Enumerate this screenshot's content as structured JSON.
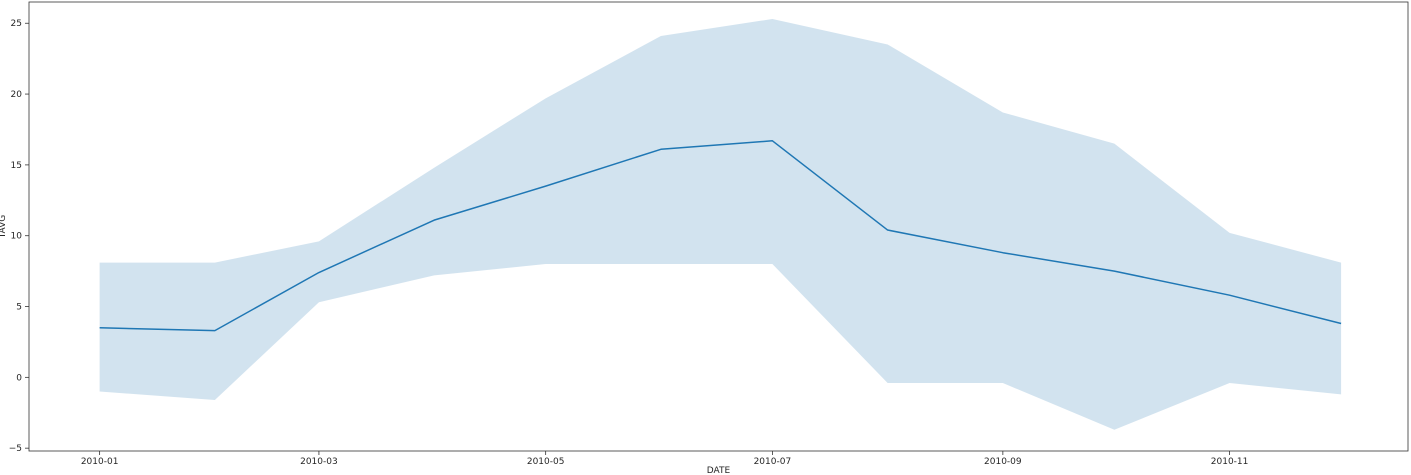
{
  "chart_data": {
    "type": "line",
    "title": "",
    "xlabel": "DATE",
    "ylabel": "TAVG",
    "x": [
      "2010-01-01",
      "2010-02-01",
      "2010-03-01",
      "2010-04-01",
      "2010-05-01",
      "2010-06-01",
      "2010-07-01",
      "2010-08-01",
      "2010-09-01",
      "2010-10-01",
      "2010-11-01",
      "2010-12-01"
    ],
    "x_tick_labels": [
      "2010-01",
      "2010-03",
      "2010-05",
      "2010-07",
      "2010-09",
      "2010-11"
    ],
    "x_tick_dates": [
      "2010-01-01",
      "2010-03-01",
      "2010-05-01",
      "2010-07-01",
      "2010-09-01",
      "2010-11-01"
    ],
    "y_ticks": [
      -5,
      0,
      5,
      10,
      15,
      20,
      25
    ],
    "ylim": [
      -5.2,
      26.5
    ],
    "xlim": [
      "2009-12-13",
      "2010-12-19"
    ],
    "grid": false,
    "series": [
      {
        "color": "#1f77b4",
        "mean": [
          3.5,
          3.3,
          7.4,
          11.1,
          13.5,
          16.1,
          16.7,
          10.4,
          8.8,
          7.5,
          5.8,
          3.8
        ],
        "upper": [
          8.1,
          8.1,
          9.6,
          14.8,
          19.7,
          24.1,
          25.3,
          23.5,
          18.7,
          16.5,
          10.2,
          8.1
        ],
        "lower": [
          -1.0,
          -1.6,
          5.3,
          7.2,
          8.0,
          8.0,
          8.0,
          -0.4,
          -0.4,
          -3.7,
          -0.4,
          -1.2
        ]
      }
    ],
    "band_color": "#a6c8e0"
  }
}
